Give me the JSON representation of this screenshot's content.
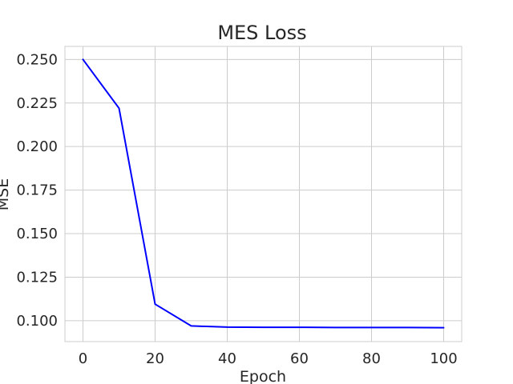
{
  "chart_data": {
    "type": "line",
    "title": "MES Loss",
    "xlabel": "Epoch",
    "ylabel": "MSE",
    "xlim": [
      -5,
      105
    ],
    "ylim": [
      0.088,
      0.2575
    ],
    "xticks": [
      0,
      20,
      40,
      60,
      80,
      100
    ],
    "xtick_labels": [
      "0",
      "20",
      "40",
      "60",
      "80",
      "100"
    ],
    "yticks": [
      0.1,
      0.125,
      0.15,
      0.175,
      0.2,
      0.225,
      0.25
    ],
    "ytick_labels": [
      "0.100",
      "0.125",
      "0.150",
      "0.175",
      "0.200",
      "0.225",
      "0.250"
    ],
    "grid": true,
    "series": [
      {
        "color": "#0000ff",
        "x": [
          0,
          10,
          20,
          30,
          40,
          50,
          60,
          70,
          80,
          90,
          100
        ],
        "values": [
          0.25,
          0.222,
          0.1095,
          0.097,
          0.0963,
          0.0962,
          0.0962,
          0.0961,
          0.0961,
          0.0961,
          0.096
        ]
      }
    ]
  }
}
